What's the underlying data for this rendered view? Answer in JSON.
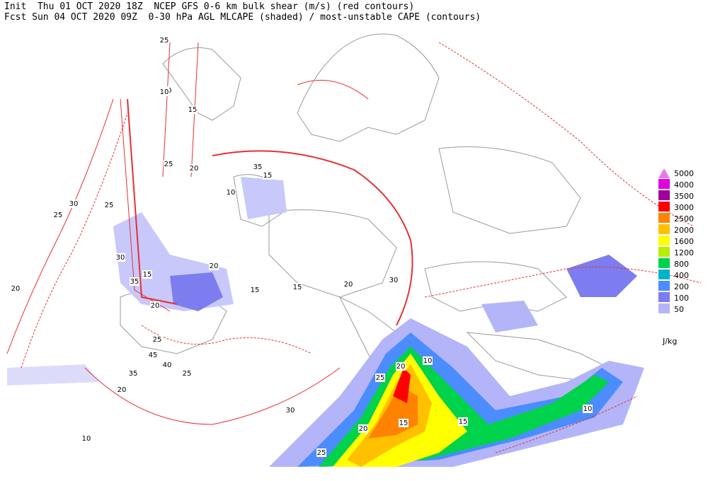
{
  "header": {
    "line1": "Init  Thu 01 OCT 2020 18Z  NCEP GFS 0-6 km bulk shear (m/s) (red contours)",
    "line2": "Fcst Sun 04 OCT 2020 09Z  0-30 hPa AGL MLCAPE (shaded) / most-unstable CAPE (contours)"
  },
  "legend": {
    "levels": [
      5000,
      4000,
      3500,
      3000,
      2500,
      2000,
      1600,
      1200,
      800,
      400,
      200,
      100,
      50
    ],
    "colors": [
      "#e27ae6",
      "#e000e0",
      "#a0009c",
      "#ff0000",
      "#ff8200",
      "#ffc000",
      "#ffff00",
      "#b4f000",
      "#00d24c",
      "#00b4c8",
      "#4b8cff",
      "#7d7df0",
      "#b4b4f8"
    ],
    "unit": "J/kg"
  },
  "contour_labels": [
    "10",
    "25",
    "10",
    "15",
    "25",
    "20",
    "30",
    "25",
    "25",
    "35",
    "15",
    "30",
    "35",
    "15",
    "20",
    "30",
    "10",
    "20",
    "25",
    "45",
    "40",
    "35",
    "25",
    "20",
    "15",
    "15",
    "30",
    "20",
    "20",
    "25",
    "20",
    "15",
    "25",
    "10",
    "15",
    "10",
    "20",
    "10"
  ]
}
